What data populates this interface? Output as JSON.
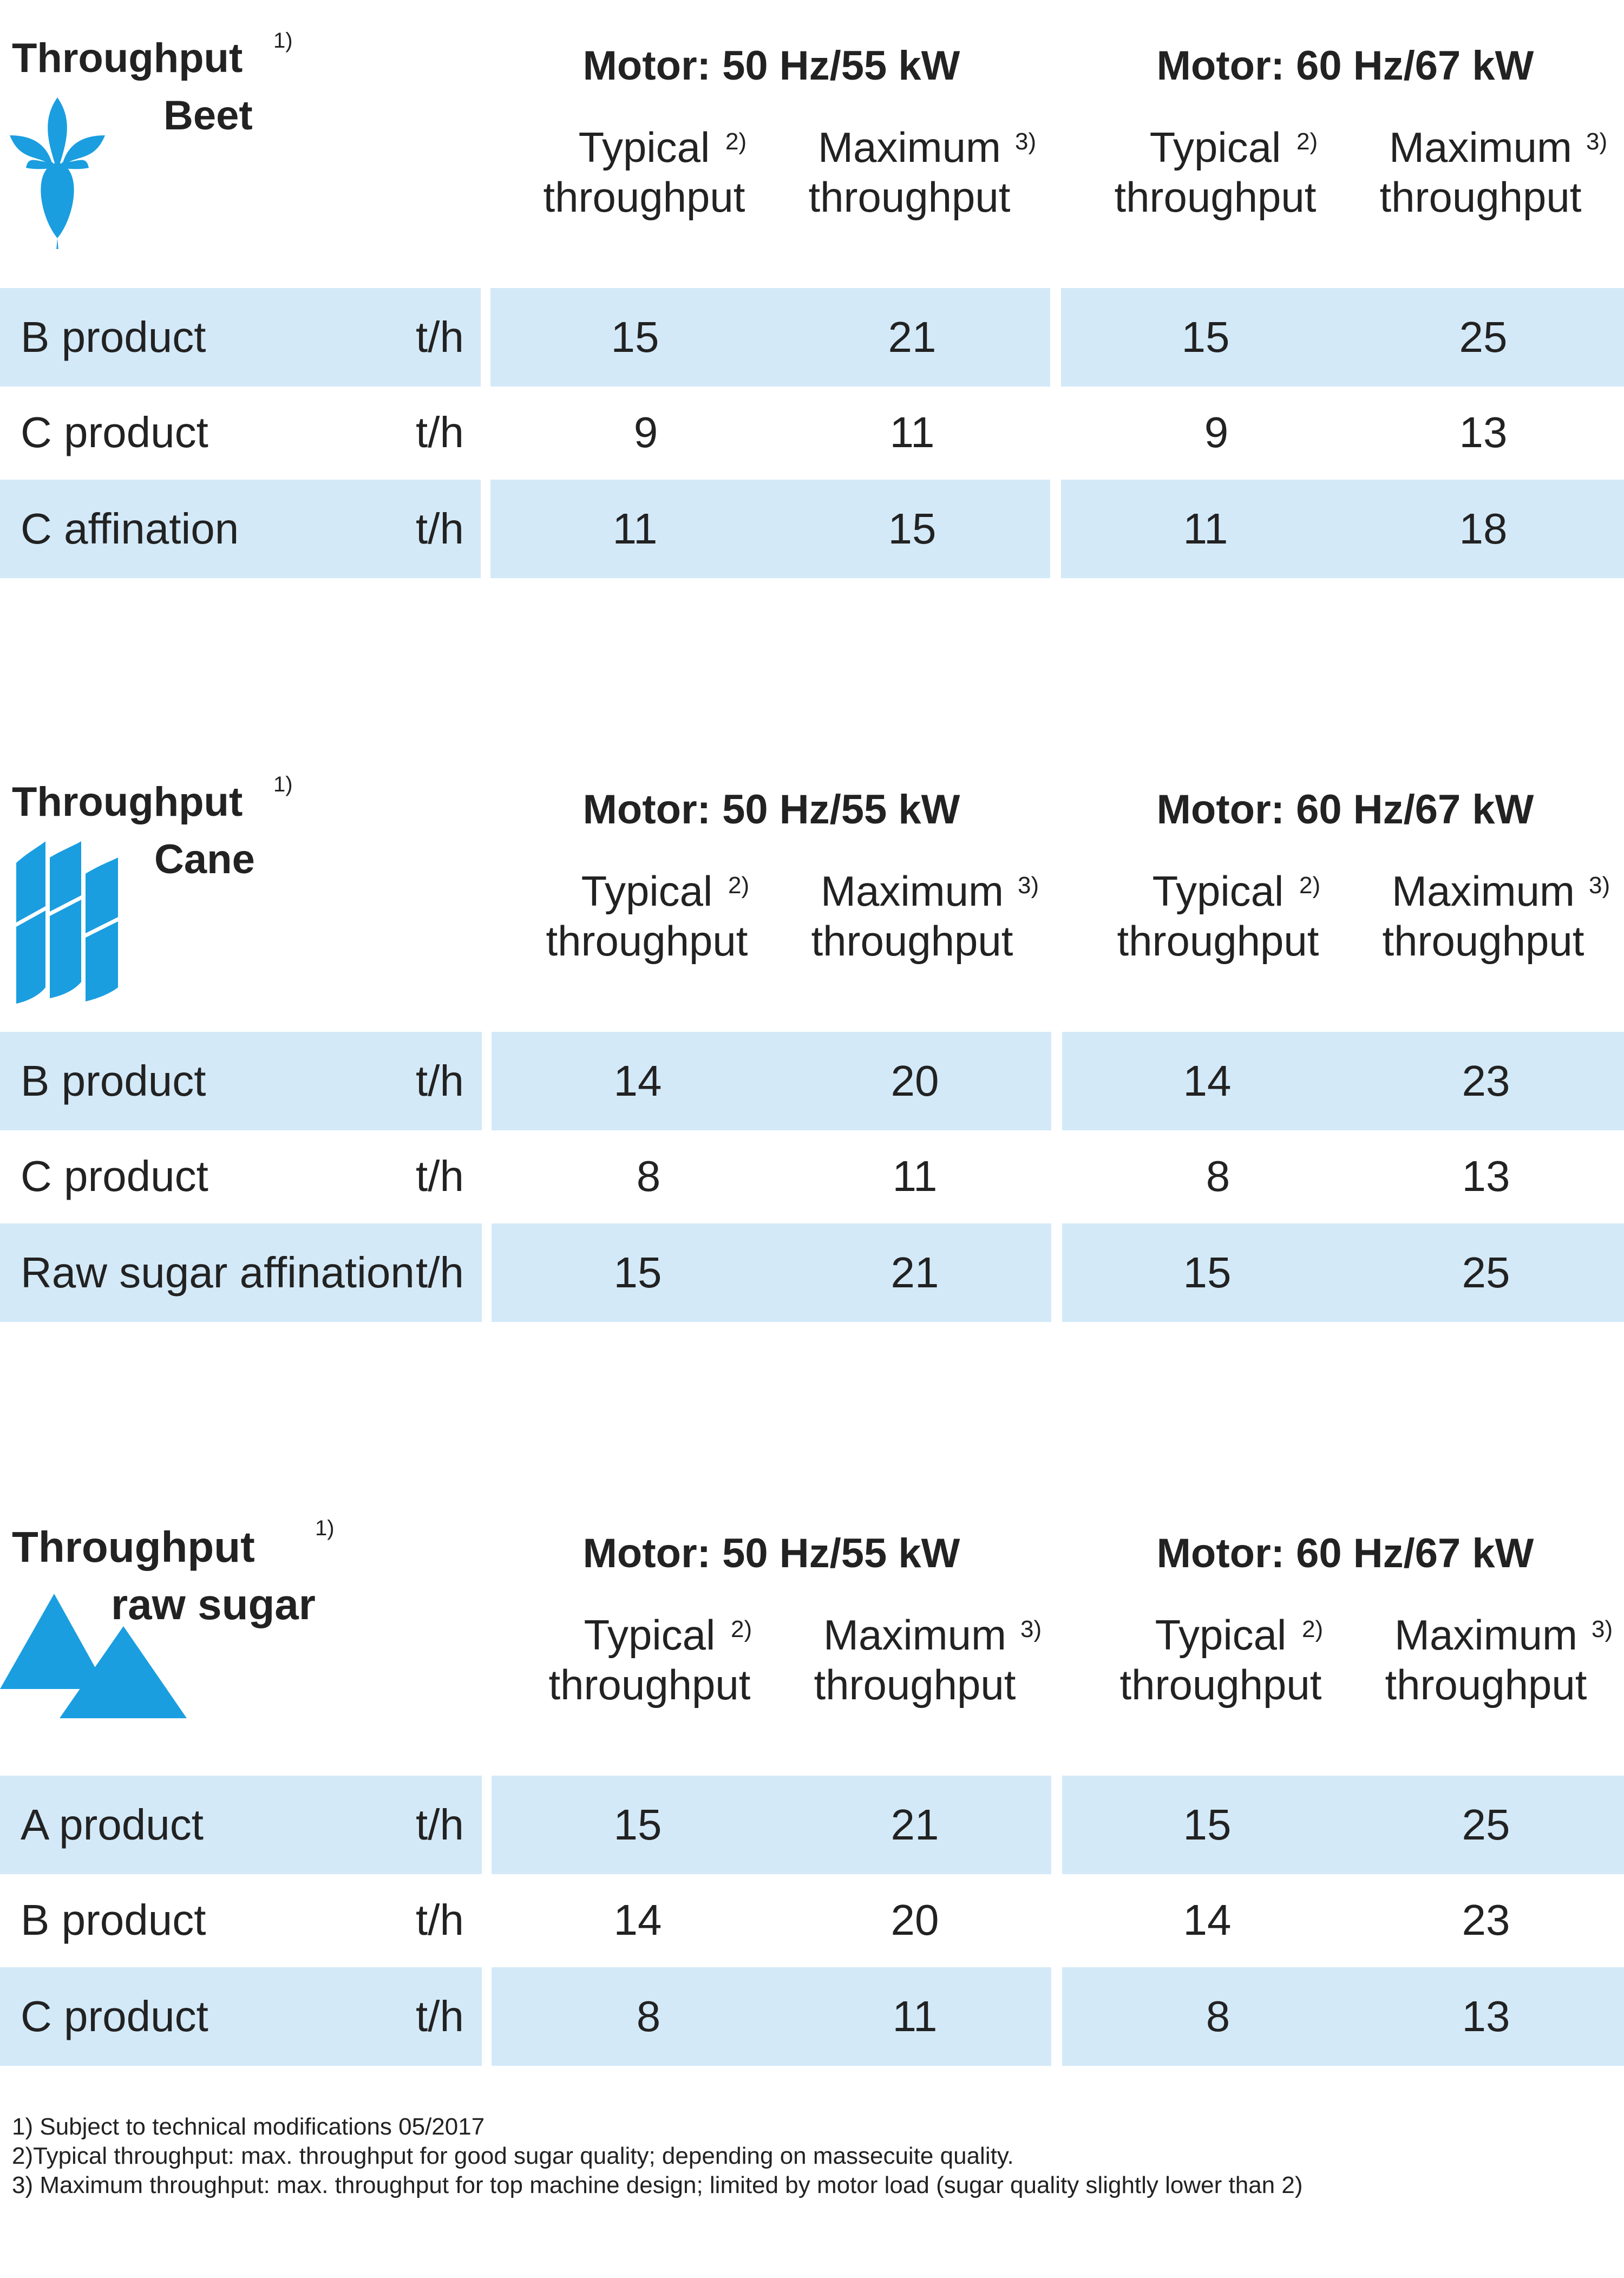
{
  "motor_50": "Motor: 50 Hz/55 kW",
  "motor_60": "Motor: 60 Hz/67 kW",
  "typical_line1": "Typical",
  "typical_line2": "throughput",
  "typical_sup": "2)",
  "maximum_line1": "Maximum",
  "maximum_line2": "throughput",
  "maximum_sup": "3)",
  "unit": "t/h",
  "accent_color": "#1a9ee0",
  "row_bg_color": "#d3e9f8",
  "sections": [
    {
      "title": "Throughput",
      "title_sup": "1)",
      "subtitle": "Beet",
      "icon": "beet-icon",
      "rows": [
        {
          "label": "B product",
          "typ50": "15",
          "max50": "21",
          "typ60": "15",
          "max60": "25"
        },
        {
          "label": "C product",
          "typ50": "9",
          "max50": "11",
          "typ60": "9",
          "max60": "13"
        },
        {
          "label": "C affination",
          "typ50": "11",
          "max50": "15",
          "typ60": "11",
          "max60": "18"
        }
      ]
    },
    {
      "title": "Throughput",
      "title_sup": "1)",
      "subtitle": "Cane",
      "icon": "sugar-cane-icon",
      "rows": [
        {
          "label": "B product",
          "typ50": "14",
          "max50": "20",
          "typ60": "14",
          "max60": "23"
        },
        {
          "label": "C product",
          "typ50": "8",
          "max50": "11",
          "typ60": "8",
          "max60": "13"
        },
        {
          "label": "Raw sugar affination",
          "typ50": "15",
          "max50": "21",
          "typ60": "15",
          "max60": "25"
        }
      ]
    },
    {
      "title": "Throughput",
      "title_sup": "1)",
      "subtitle": "raw sugar",
      "icon": "raw-sugar-icon",
      "rows": [
        {
          "label": "A product",
          "typ50": "15",
          "max50": "21",
          "typ60": "15",
          "max60": "25"
        },
        {
          "label": "B product",
          "typ50": "14",
          "max50": "20",
          "typ60": "14",
          "max60": "23"
        },
        {
          "label": "C product",
          "typ50": "8",
          "max50": "11",
          "typ60": "8",
          "max60": "13"
        }
      ]
    }
  ],
  "footnotes": [
    "1) Subject to technical modifications 05/2017",
    "2)Typical throughput: max. throughput for good sugar quality; depending on massecuite quality.",
    "3) Maximum throughput: max. throughput for top machine design; limited by motor load (sugar quality slightly lower than 2)"
  ]
}
